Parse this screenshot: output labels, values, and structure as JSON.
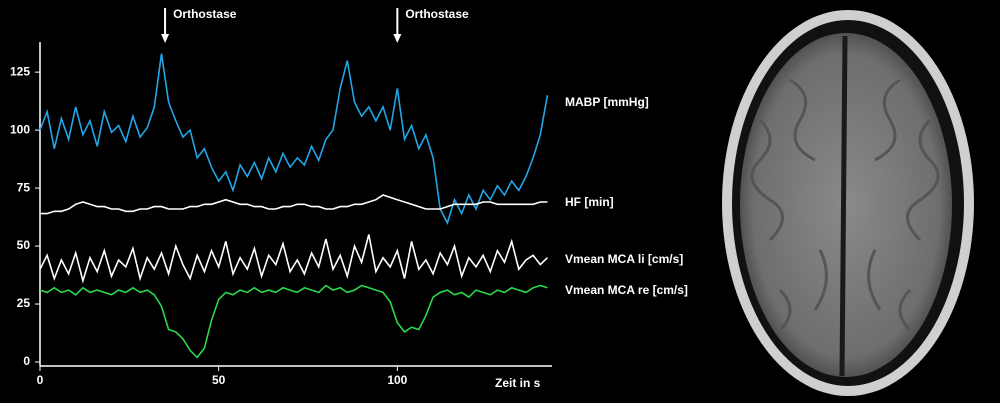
{
  "chart_data": {
    "type": "line",
    "xlabel": "Zeit in s",
    "x": [
      0,
      2,
      4,
      6,
      8,
      10,
      12,
      14,
      16,
      18,
      20,
      22,
      24,
      26,
      28,
      30,
      32,
      34,
      36,
      38,
      40,
      42,
      44,
      46,
      48,
      50,
      52,
      54,
      56,
      58,
      60,
      62,
      64,
      66,
      68,
      70,
      72,
      74,
      76,
      78,
      80,
      82,
      84,
      86,
      88,
      90,
      92,
      94,
      96,
      98,
      100,
      102,
      104,
      106,
      108,
      110,
      112,
      114,
      116,
      118,
      120,
      122,
      124,
      126,
      128,
      130,
      132,
      134,
      136,
      138,
      140,
      142
    ],
    "series": [
      {
        "name": "MABP [mmHg]",
        "color": "#22a6e8",
        "values": [
          100,
          108,
          92,
          105,
          96,
          110,
          98,
          104,
          93,
          108,
          99,
          102,
          95,
          106,
          97,
          101,
          110,
          133,
          112,
          104,
          97,
          100,
          88,
          92,
          84,
          78,
          82,
          74,
          85,
          80,
          86,
          79,
          88,
          82,
          90,
          84,
          88,
          85,
          93,
          87,
          96,
          100,
          118,
          130,
          112,
          106,
          110,
          104,
          110,
          100,
          118,
          96,
          102,
          92,
          98,
          88,
          66,
          60,
          70,
          64,
          72,
          66,
          74,
          70,
          76,
          72,
          78,
          74,
          80,
          88,
          98,
          115
        ]
      },
      {
        "name": "HF [min]",
        "color": "#ffffff",
        "values": [
          64,
          64,
          65,
          65,
          66,
          68,
          69,
          68,
          67,
          67,
          66,
          66,
          65,
          65,
          66,
          66,
          67,
          67,
          66,
          66,
          66,
          67,
          67,
          68,
          68,
          69,
          70,
          69,
          68,
          68,
          67,
          67,
          66,
          66,
          67,
          67,
          68,
          68,
          67,
          67,
          66,
          66,
          67,
          67,
          68,
          68,
          69,
          70,
          72,
          71,
          70,
          69,
          68,
          67,
          66,
          66,
          66,
          67,
          68,
          68,
          68,
          68,
          69,
          69,
          68,
          68,
          68,
          68,
          68,
          68,
          69,
          69
        ]
      },
      {
        "name": "Vmean MCA li [cm/s]",
        "color": "#ffffff",
        "values": [
          40,
          46,
          36,
          44,
          38,
          47,
          35,
          45,
          39,
          48,
          37,
          44,
          41,
          49,
          36,
          45,
          40,
          47,
          38,
          50,
          42,
          36,
          46,
          39,
          48,
          41,
          52,
          38,
          45,
          40,
          49,
          37,
          46,
          42,
          51,
          39,
          44,
          38,
          47,
          41,
          53,
          40,
          46,
          37,
          50,
          43,
          55,
          39,
          45,
          41,
          48,
          36,
          52,
          40,
          44,
          38,
          47,
          42,
          50,
          37,
          45,
          41,
          46,
          39,
          48,
          43,
          52,
          40,
          44,
          46,
          42,
          45
        ]
      },
      {
        "name": "Vmean MCA re [cm/s]",
        "color": "#2bd94c",
        "values": [
          31,
          30,
          32,
          30,
          31,
          29,
          32,
          30,
          31,
          30,
          29,
          31,
          30,
          32,
          30,
          31,
          29,
          24,
          14,
          13,
          10,
          5,
          2,
          6,
          18,
          27,
          30,
          29,
          31,
          30,
          32,
          30,
          31,
          30,
          32,
          31,
          30,
          32,
          31,
          30,
          33,
          31,
          32,
          30,
          31,
          33,
          32,
          31,
          30,
          26,
          17,
          13,
          15,
          14,
          20,
          28,
          30,
          31,
          29,
          30,
          28,
          31,
          30,
          29,
          31,
          30,
          32,
          31,
          30,
          32,
          33,
          32
        ]
      }
    ],
    "annotations": [
      {
        "text": "Orthostase",
        "x": 35
      },
      {
        "text": "Orthostase",
        "x": 100
      }
    ],
    "xlim": [
      0,
      143
    ],
    "xticks": [
      0,
      50,
      100
    ],
    "ylim": [
      0,
      138
    ],
    "yticks": [
      0,
      25,
      50,
      75,
      100,
      125
    ]
  }
}
